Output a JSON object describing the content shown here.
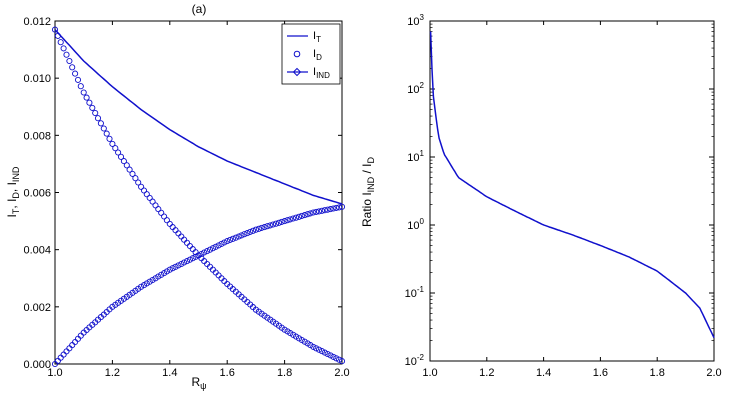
{
  "chart_data": [
    {
      "type": "line",
      "title": "(a)",
      "xlabel_main": "R",
      "xlabel_sub": "ψ",
      "ylabel_parts": [
        "I",
        "T",
        ", I",
        "D",
        ", I",
        "IND"
      ],
      "xlim": [
        1.0,
        2.0
      ],
      "ylim": [
        0,
        0.012
      ],
      "x_ticks": [
        "1.0",
        "1.2",
        "1.4",
        "1.6",
        "1.8",
        "2.0"
      ],
      "y_ticks": [
        "0.000",
        "0.002",
        "0.004",
        "0.006",
        "0.008",
        "0.010",
        "0.012"
      ],
      "legend_position": "top-right",
      "legend": [
        {
          "main": "I",
          "sub": "T",
          "marker": "line"
        },
        {
          "main": "I",
          "sub": "D",
          "marker": "circle"
        },
        {
          "main": "I",
          "sub": "IND",
          "marker": "line-diamond"
        }
      ],
      "x": [
        1.0,
        1.1,
        1.2,
        1.3,
        1.4,
        1.5,
        1.6,
        1.7,
        1.8,
        1.9,
        2.0
      ],
      "series": [
        {
          "name": "I_T",
          "style": "line",
          "values": [
            0.0117,
            0.0106,
            0.0097,
            0.0089,
            0.0082,
            0.0076,
            0.0071,
            0.0067,
            0.0063,
            0.0059,
            0.0056
          ]
        },
        {
          "name": "I_D",
          "style": "circle",
          "values": [
            0.0117,
            0.0095,
            0.0077,
            0.0062,
            0.0049,
            0.0038,
            0.0028,
            0.0019,
            0.0012,
            0.0006,
            0.0001
          ]
        },
        {
          "name": "I_IND",
          "style": "circle",
          "values": [
            0.0,
            0.0011,
            0.002,
            0.0027,
            0.0033,
            0.0038,
            0.0043,
            0.0047,
            0.005,
            0.0053,
            0.0055
          ]
        }
      ]
    },
    {
      "type": "line",
      "title": "",
      "xlabel": "",
      "ylabel_parts": [
        "Ratio I",
        "IND",
        " / I",
        "D"
      ],
      "xlim": [
        1.0,
        2.0
      ],
      "ylim": [
        0.01,
        1000
      ],
      "yscale": "log",
      "x_ticks": [
        "1.0",
        "1.2",
        "1.4",
        "1.6",
        "1.8",
        "2.0"
      ],
      "y_ticks": [
        {
          "base": "10",
          "exp": "-2"
        },
        {
          "base": "10",
          "exp": "-1"
        },
        {
          "base": "10",
          "exp": "0"
        },
        {
          "base": "10",
          "exp": "1"
        },
        {
          "base": "10",
          "exp": "2"
        },
        {
          "base": "10",
          "exp": "3"
        }
      ],
      "x": [
        1.002,
        1.01,
        1.03,
        1.05,
        1.1,
        1.2,
        1.3,
        1.4,
        1.5,
        1.6,
        1.7,
        1.8,
        1.9,
        1.95,
        2.0
      ],
      "series": [
        {
          "name": "Ratio",
          "values": [
            700,
            90,
            20,
            11,
            5,
            2.6,
            1.6,
            1.0,
            0.72,
            0.5,
            0.34,
            0.21,
            0.1,
            0.06,
            0.022
          ]
        }
      ]
    }
  ],
  "colors": {
    "series": "#1010cc",
    "axis": "#000000"
  }
}
